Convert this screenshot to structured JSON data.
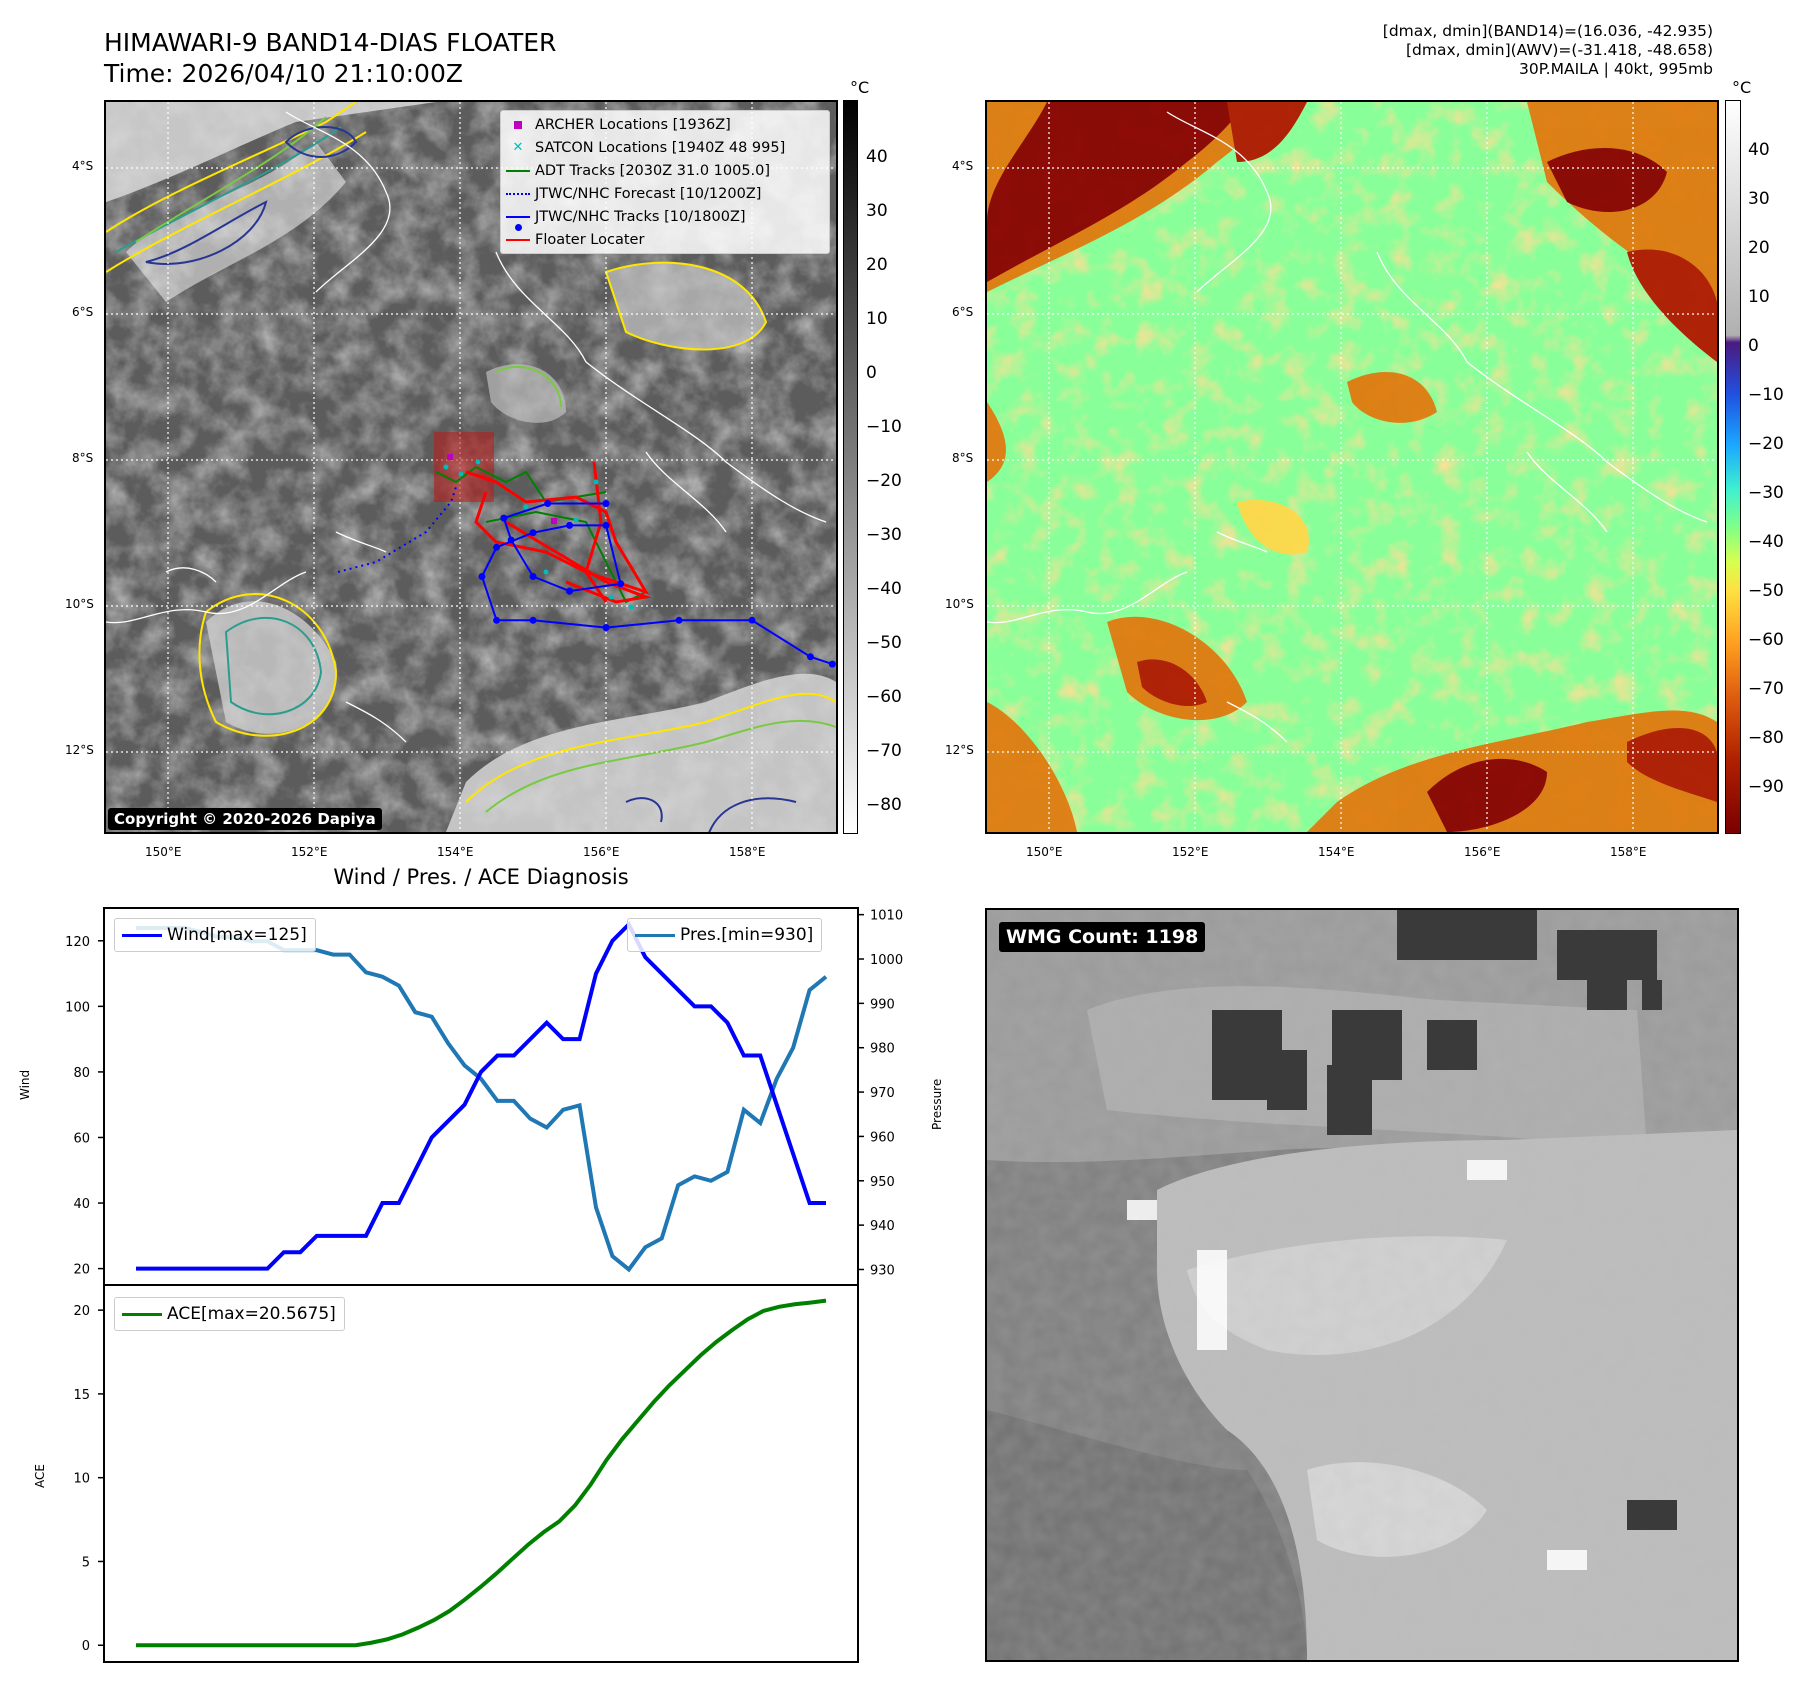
{
  "header": {
    "title_line1": "HIMAWARI-9 BAND14-DIAS FLOATER",
    "title_line2": "Time: 2026/04/10 21:10:00Z",
    "info_line1": "[dmax, dmin](BAND14)=(16.036, -42.935)",
    "info_line2": "[dmax, dmin](AWV)=(-31.418, -48.658)",
    "info_line3": "30P.MAILA | 40kt, 995mb"
  },
  "map": {
    "lat_labels": [
      "4°S",
      "6°S",
      "8°S",
      "10°S",
      "12°S"
    ],
    "lon_labels": [
      "150°E",
      "152°E",
      "154°E",
      "156°E",
      "158°E"
    ],
    "copyright": "Copyright © 2020-2026 Dapiya",
    "legend": [
      {
        "label": "ARCHER Locations [1936Z]",
        "color": "#c000c0"
      },
      {
        "label": "SATCON Locations [1940Z 48 995]",
        "color": "#00bcbc"
      },
      {
        "label": "ADT Tracks [2030Z 31.0 1005.0]",
        "color": "#008000"
      },
      {
        "label": "JTWC/NHC Forecast [10/1200Z]",
        "color": "#0000ff"
      },
      {
        "label": "JTWC/NHC Tracks [10/1800Z]",
        "color": "#0000ff"
      },
      {
        "label": "Floater Locater",
        "color": "#ff0000"
      }
    ],
    "jtwc_tracks_lonlat": [
      [
        159.1,
        -10.8
      ],
      [
        158.8,
        -10.7
      ],
      [
        158.0,
        -10.2
      ],
      [
        157.0,
        -10.2
      ],
      [
        156.0,
        -10.3
      ],
      [
        155.0,
        -10.2
      ],
      [
        154.5,
        -10.2
      ],
      [
        154.3,
        -9.6
      ],
      [
        154.5,
        -9.2
      ],
      [
        155.0,
        -9.0
      ],
      [
        155.5,
        -8.9
      ],
      [
        156.0,
        -8.9
      ],
      [
        156.2,
        -9.7
      ],
      [
        155.5,
        -9.8
      ],
      [
        155.0,
        -9.6
      ],
      [
        154.7,
        -9.1
      ],
      [
        154.6,
        -8.8
      ],
      [
        155.2,
        -8.6
      ],
      [
        156.0,
        -8.6
      ]
    ]
  },
  "colorbar_left": {
    "unit": "°C",
    "ticks": [
      "40",
      "30",
      "20",
      "10",
      "0",
      "−10",
      "−20",
      "−30",
      "−40",
      "−50",
      "−60",
      "−70",
      "−80"
    ]
  },
  "colorbar_right": {
    "unit": "°C",
    "ticks": [
      "40",
      "30",
      "20",
      "10",
      "0",
      "−10",
      "−20",
      "−30",
      "−40",
      "−50",
      "−60",
      "−70",
      "−80",
      "−90"
    ]
  },
  "diagnosis": {
    "title": "Wind / Pres. / ACE Diagnosis"
  },
  "chart_data": [
    {
      "type": "line",
      "title": "Wind / Pres. / ACE Diagnosis",
      "ylabel": "Wind",
      "ylabel_right": "Pressure",
      "ylim": [
        15,
        130
      ],
      "ylim_right": [
        926.5,
        1011.5
      ],
      "yticks": [
        20,
        40,
        60,
        80,
        100,
        120
      ],
      "yticks_right": [
        930,
        940,
        950,
        960,
        970,
        980,
        990,
        1000,
        1010
      ],
      "legend_left": "Wind[max=125]",
      "legend_right": "Pres.[min=930]",
      "series": [
        {
          "name": "Wind[max=125]",
          "color": "#0000ff",
          "axis": "left",
          "values": [
            20,
            20,
            20,
            20,
            20,
            20,
            20,
            20,
            20,
            25,
            25,
            30,
            30,
            30,
            30,
            40,
            40,
            50,
            60,
            65,
            70,
            80,
            85,
            85,
            90,
            95,
            90,
            90,
            110,
            120,
            125,
            115,
            110,
            105,
            100,
            100,
            95,
            85,
            85,
            70,
            55,
            40,
            40
          ]
        },
        {
          "name": "Pres.[min=930]",
          "color": "#1f77b4",
          "axis": "right",
          "values": [
            1007,
            1007,
            1007,
            1007,
            1006,
            1005,
            1005,
            1004,
            1004,
            1002,
            1002,
            1002,
            1001,
            1001,
            997,
            996,
            994,
            988,
            987,
            981,
            976,
            973,
            968,
            968,
            964,
            962,
            966,
            967,
            944,
            933,
            930,
            935,
            937,
            949,
            951,
            950,
            952,
            966,
            963,
            973,
            980,
            993,
            996
          ]
        }
      ]
    },
    {
      "type": "line",
      "ylabel": "ACE",
      "ylim": [
        -1,
        21.5
      ],
      "yticks": [
        0,
        5,
        10,
        15,
        20
      ],
      "series": [
        {
          "name": "ACE[max=20.5675]",
          "color": "#008000",
          "values": [
            0,
            0,
            0,
            0,
            0,
            0,
            0,
            0,
            0,
            0,
            0,
            0,
            0,
            0,
            0,
            0.15,
            0.35,
            0.65,
            1.05,
            1.5,
            2.05,
            2.75,
            3.5,
            4.3,
            5.15,
            6.0,
            6.75,
            7.4,
            8.35,
            9.6,
            11.05,
            12.3,
            13.4,
            14.5,
            15.5,
            16.4,
            17.3,
            18.1,
            18.8,
            19.45,
            19.95,
            20.2,
            20.35,
            20.45,
            20.5675
          ]
        }
      ]
    }
  ],
  "wmg": {
    "label": "WMG Count: 1198"
  }
}
